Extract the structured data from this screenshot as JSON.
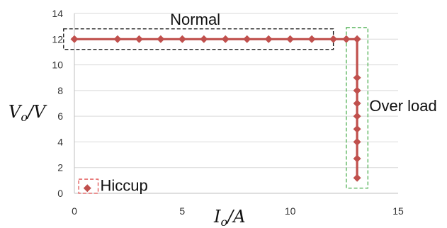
{
  "chart_data": {
    "type": "scatter",
    "title": "",
    "xlabel": {
      "main": "I",
      "sub": "o",
      "unit": "/A"
    },
    "ylabel": {
      "main": "V",
      "sub": "o",
      "unit": "/V"
    },
    "xlim": [
      0,
      15
    ],
    "ylim": [
      0,
      14
    ],
    "x_ticks": [
      0,
      5,
      10,
      15
    ],
    "y_ticks": [
      0,
      2,
      4,
      6,
      8,
      10,
      12,
      14
    ],
    "grid": "horizontal",
    "series": [
      {
        "color": "#c0504d",
        "connected": true,
        "points": [
          {
            "x": 0,
            "y": 12
          },
          {
            "x": 2,
            "y": 12
          },
          {
            "x": 3,
            "y": 12
          },
          {
            "x": 4,
            "y": 12
          },
          {
            "x": 5,
            "y": 12
          },
          {
            "x": 6,
            "y": 12
          },
          {
            "x": 7,
            "y": 12
          },
          {
            "x": 8,
            "y": 12
          },
          {
            "x": 9,
            "y": 12
          },
          {
            "x": 10,
            "y": 12
          },
          {
            "x": 11,
            "y": 12
          },
          {
            "x": 12,
            "y": 12
          },
          {
            "x": 12.6,
            "y": 12
          },
          {
            "x": 13.1,
            "y": 12
          },
          {
            "x": 13.1,
            "y": 9
          },
          {
            "x": 13.1,
            "y": 8
          },
          {
            "x": 13.1,
            "y": 7
          },
          {
            "x": 13.1,
            "y": 6
          },
          {
            "x": 13.1,
            "y": 5
          },
          {
            "x": 13.1,
            "y": 4
          },
          {
            "x": 13.1,
            "y": 2.7
          },
          {
            "x": 13.1,
            "y": 1.2
          }
        ]
      },
      {
        "color": "#c0504d",
        "connected": false,
        "points": [
          {
            "x": 0.6,
            "y": 0.4
          }
        ]
      }
    ],
    "regions": [
      {
        "label": "Normal",
        "color": "#111111",
        "x": [
          -0.5,
          12
        ],
        "y": [
          11.2,
          12.8
        ]
      },
      {
        "label": "Over load",
        "color": "#4caf50",
        "x": [
          12.6,
          13.6
        ],
        "y": [
          0.4,
          12.9
        ]
      },
      {
        "label": "Hiccup",
        "color": "#e05050",
        "x": [
          0.2,
          1.1
        ],
        "y": [
          0,
          1.1
        ]
      }
    ]
  }
}
